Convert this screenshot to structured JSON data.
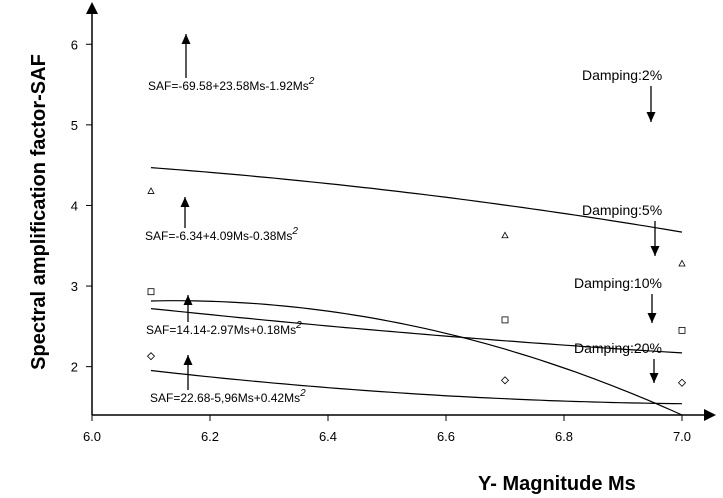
{
  "chart_data": {
    "type": "line",
    "xlabel": "Y- Magnitude Ms",
    "ylabel": "Spectral amplification factor-SAF",
    "xlim": [
      6.0,
      7.0
    ],
    "ylim": [
      1.4,
      6.45
    ],
    "xticks": [
      "6.0",
      "6.2",
      "6.4",
      "6.6",
      "6.8",
      "7.0"
    ],
    "yticks": [
      "2",
      "3",
      "4",
      "5",
      "6"
    ],
    "grid": false,
    "series": [
      {
        "name": "Damping:2%",
        "equation": {
          "prefix": "SAF=-69.58+23.58Ms-1.92Ms",
          "sup": "2"
        },
        "coeffs": [
          -69.58,
          23.58,
          -1.92
        ],
        "marker": "none",
        "points": []
      },
      {
        "name": "Damping:5%",
        "equation": {
          "prefix": "SAF=-6.34+4.09Ms-0.38Ms",
          "sup": "2"
        },
        "coeffs": [
          -6.34,
          4.09,
          -0.38
        ],
        "marker": "triangle",
        "points": [
          [
            6.1,
            4.18
          ],
          [
            6.7,
            3.63
          ],
          [
            7.0,
            3.28
          ]
        ]
      },
      {
        "name": "Damping:10%",
        "equation": {
          "prefix": "SAF=14.14-2.97Ms+0.18Ms",
          "sup": "2"
        },
        "coeffs": [
          14.14,
          -2.97,
          0.18
        ],
        "marker": "square",
        "points": [
          [
            6.1,
            2.93
          ],
          [
            6.7,
            2.58
          ],
          [
            7.0,
            2.45
          ]
        ]
      },
      {
        "name": "Damping:20%",
        "equation": {
          "prefix": "SAF=22.68-5,96Ms+0.42Ms",
          "sup": "2"
        },
        "coeffs": [
          22.68,
          -5.96,
          0.42
        ],
        "marker": "diamond",
        "points": [
          [
            6.1,
            2.13
          ],
          [
            6.7,
            1.83
          ],
          [
            7.0,
            1.8
          ]
        ]
      }
    ]
  }
}
